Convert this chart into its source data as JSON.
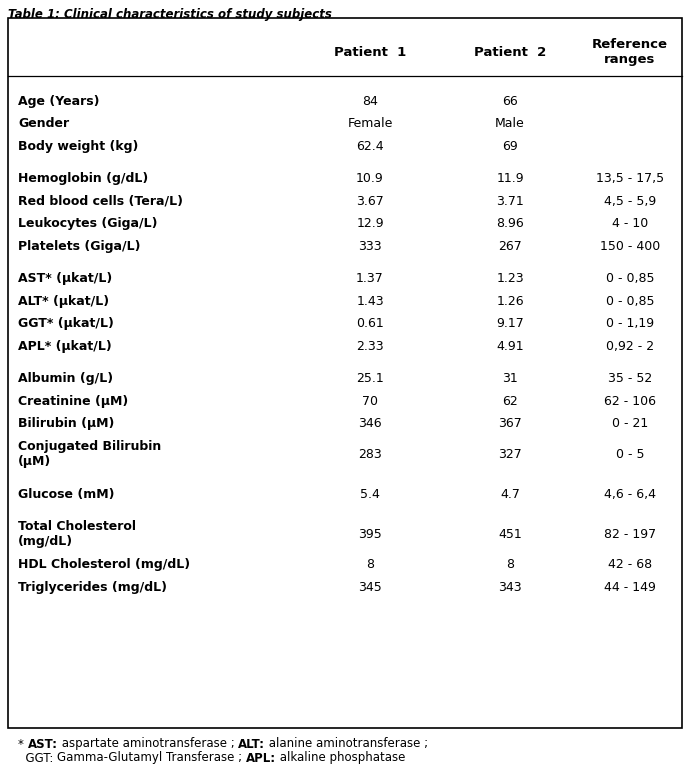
{
  "title": "Table 1: Clinical characteristics of study subjects",
  "col_headers": [
    "Patient  1",
    "Patient  2",
    "Reference\nranges"
  ],
  "rows": [
    {
      "label": "Age (Years)",
      "p1": "84",
      "p2": "66",
      "ref": "",
      "gap_before": false,
      "label_lines": 1
    },
    {
      "label": "Gender",
      "p1": "Female",
      "p2": "Male",
      "ref": "",
      "gap_before": false,
      "label_lines": 1
    },
    {
      "label": "Body weight (kg)",
      "p1": "62.4",
      "p2": "69",
      "ref": "",
      "gap_before": false,
      "label_lines": 1
    },
    {
      "label": "",
      "p1": "",
      "p2": "",
      "ref": "",
      "gap_before": false,
      "label_lines": 0
    },
    {
      "label": "Hemoglobin (g/dL)",
      "p1": "10.9",
      "p2": "11.9",
      "ref": "13,5 - 17,5",
      "gap_before": false,
      "label_lines": 1
    },
    {
      "label": "Red blood cells (Tera/L)",
      "p1": "3.67",
      "p2": "3.71",
      "ref": "4,5 - 5,9",
      "gap_before": false,
      "label_lines": 1
    },
    {
      "label": "Leukocytes (Giga/L)",
      "p1": "12.9",
      "p2": "8.96",
      "ref": "4 - 10",
      "gap_before": false,
      "label_lines": 1
    },
    {
      "label": "Platelets (Giga/L)",
      "p1": "333",
      "p2": "267",
      "ref": "150 - 400",
      "gap_before": false,
      "label_lines": 1
    },
    {
      "label": "",
      "p1": "",
      "p2": "",
      "ref": "",
      "gap_before": false,
      "label_lines": 0
    },
    {
      "label": "AST* (μkat/L)",
      "p1": "1.37",
      "p2": "1.23",
      "ref": "0 - 0,85",
      "gap_before": false,
      "label_lines": 1
    },
    {
      "label": "ALT* (μkat/L)",
      "p1": "1.43",
      "p2": "1.26",
      "ref": "0 - 0,85",
      "gap_before": false,
      "label_lines": 1
    },
    {
      "label": "GGT* (μkat/L)",
      "p1": "0.61",
      "p2": "9.17",
      "ref": "0 - 1,19",
      "gap_before": false,
      "label_lines": 1
    },
    {
      "label": "APL* (μkat/L)",
      "p1": "2.33",
      "p2": "4.91",
      "ref": "0,92 - 2",
      "gap_before": false,
      "label_lines": 1
    },
    {
      "label": "",
      "p1": "",
      "p2": "",
      "ref": "",
      "gap_before": false,
      "label_lines": 0
    },
    {
      "label": "Albumin (g/L)",
      "p1": "25.1",
      "p2": "31",
      "ref": "35 - 52",
      "gap_before": false,
      "label_lines": 1
    },
    {
      "label": "Creatinine (μM)",
      "p1": "70",
      "p2": "62",
      "ref": "62 - 106",
      "gap_before": false,
      "label_lines": 1
    },
    {
      "label": "Bilirubin (μM)",
      "p1": "346",
      "p2": "367",
      "ref": "0 - 21",
      "gap_before": false,
      "label_lines": 1
    },
    {
      "label": "Conjugated Bilirubin\n(μM)",
      "p1": "283",
      "p2": "327",
      "ref": "0 - 5",
      "gap_before": false,
      "label_lines": 2
    },
    {
      "label": "",
      "p1": "",
      "p2": "",
      "ref": "",
      "gap_before": false,
      "label_lines": 0
    },
    {
      "label": "Glucose (mM)",
      "p1": "5.4",
      "p2": "4.7",
      "ref": "4,6 - 6,4",
      "gap_before": false,
      "label_lines": 1
    },
    {
      "label": "",
      "p1": "",
      "p2": "",
      "ref": "",
      "gap_before": false,
      "label_lines": 0
    },
    {
      "label": "Total Cholesterol\n(mg/dL)",
      "p1": "395",
      "p2": "451",
      "ref": "82 - 197",
      "gap_before": false,
      "label_lines": 2
    },
    {
      "label": "HDL Cholesterol (mg/dL)",
      "p1": "8",
      "p2": "8",
      "ref": "42 - 68",
      "gap_before": false,
      "label_lines": 1
    },
    {
      "label": "Triglycerides (mg/dL)",
      "p1": "345",
      "p2": "343",
      "ref": "44 - 149",
      "gap_before": false,
      "label_lines": 1
    }
  ],
  "footnote_parts1": [
    [
      "* ",
      false
    ],
    [
      "AST:",
      true
    ],
    [
      " aspartate aminotransferase ; ",
      false
    ],
    [
      "ALT:",
      true
    ],
    [
      " alanine aminotransferase ;",
      false
    ]
  ],
  "footnote_parts2": [
    [
      "  GGT: ",
      false
    ],
    [
      "Gamma-Glutamyl Transferase ; ",
      false
    ],
    [
      "APL:",
      true
    ],
    [
      " alkaline phosphatase",
      false
    ]
  ],
  "bg_color": "#ffffff",
  "text_color": "#000000"
}
